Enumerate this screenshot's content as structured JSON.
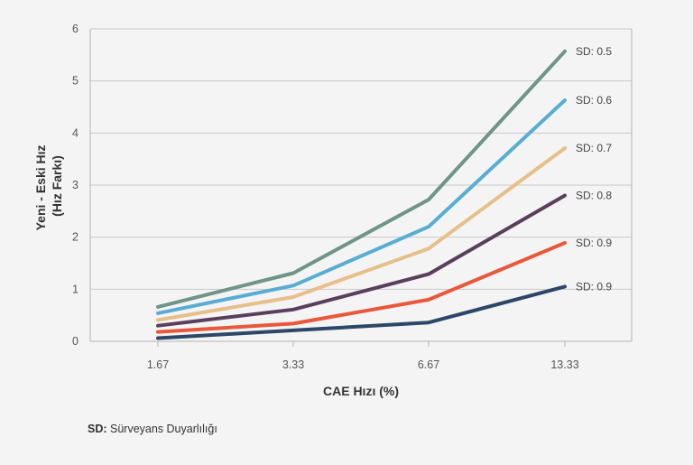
{
  "chart_data": {
    "type": "line",
    "categories": [
      "1.67",
      "3.33",
      "6.67",
      "13.33"
    ],
    "xlabel": "CAE Hızı (%)",
    "ylabel_lines": [
      "Yeni - Eski Hız",
      "(Hız Farkı)"
    ],
    "ylim": [
      0,
      6
    ],
    "yticks": [
      0,
      1,
      2,
      3,
      4,
      5,
      6
    ],
    "grid": "horizontal",
    "series": [
      {
        "name": "SD: 0.5",
        "color": "#6e9588",
        "values": [
          0.66,
          1.31,
          2.72,
          5.57
        ]
      },
      {
        "name": "SD: 0.6",
        "color": "#58aed2",
        "values": [
          0.54,
          1.07,
          2.2,
          4.63
        ]
      },
      {
        "name": "SD: 0.7",
        "color": "#e6bf89",
        "values": [
          0.41,
          0.85,
          1.78,
          3.71
        ]
      },
      {
        "name": "SD: 0.8",
        "color": "#5a3f5c",
        "values": [
          0.3,
          0.61,
          1.29,
          2.8
        ]
      },
      {
        "name": "SD: 0.9",
        "color": "#e9583b",
        "values": [
          0.18,
          0.34,
          0.8,
          1.89
        ]
      },
      {
        "name": "SD: 0.9",
        "color": "#2c4767",
        "values": [
          0.06,
          0.21,
          0.36,
          1.05
        ]
      }
    ]
  },
  "footnote": {
    "abbr": "SD:",
    "text": " Sürveyans Duyarlılığı"
  }
}
